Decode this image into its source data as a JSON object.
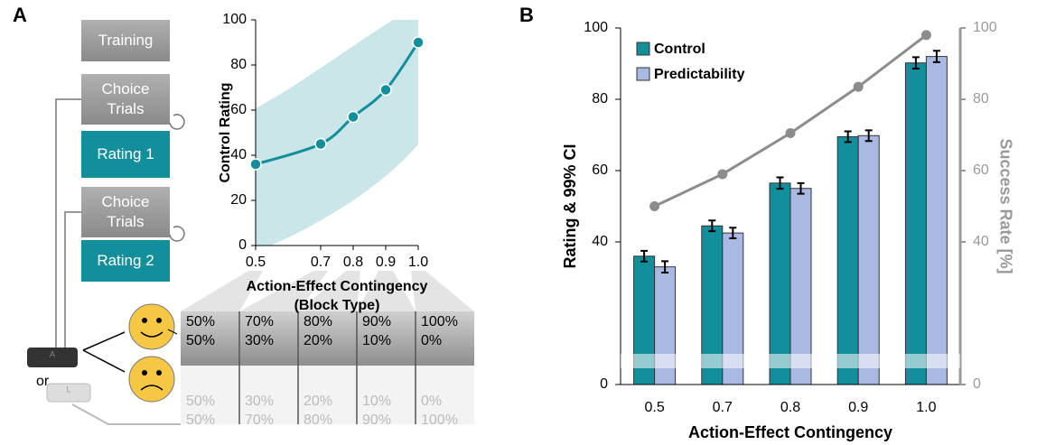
{
  "panels": [
    "A",
    "B"
  ],
  "flow": [
    "Training",
    "Choice Trials",
    "Rating 1",
    "Choice Trials",
    "Rating 2"
  ],
  "keys": [
    "A",
    "L"
  ],
  "or": "or",
  "table": {
    "rows": [
      [
        "50%",
        "70%",
        "80%",
        "90%",
        "100%"
      ],
      [
        "50%",
        "30%",
        "20%",
        "10%",
        "0%"
      ],
      [
        "50%",
        "30%",
        "20%",
        "10%",
        "0%"
      ],
      [
        "50%",
        "70%",
        "80%",
        "90%",
        "100%"
      ]
    ]
  },
  "chart_data": [
    {
      "type": "line",
      "ylabel": "Control Rating",
      "xlabel": "Action-Effect Contingency",
      "xlabel_sub": "(Block Type)",
      "x": [
        0.5,
        0.7,
        0.8,
        0.9,
        1.0
      ],
      "values": [
        36,
        45,
        57,
        69,
        90
      ],
      "color": "#138f9c",
      "xlim": [
        0.5,
        1
      ],
      "xticks": [
        0.5,
        0.7,
        0.8,
        0.9,
        {
          "value": 1,
          "label": "1.0"
        }
      ],
      "ylim": [
        0,
        100
      ],
      "yticks": [
        0,
        20,
        40,
        60,
        80,
        100
      ]
    },
    {
      "type": "bar",
      "xlabel": "Action-Effect Contingency",
      "ylabel": "Rating & 99% CI",
      "y2label": "Success Rate [%]",
      "categories": [
        "0.5",
        "0.7",
        "0.8",
        "0.9",
        "1.0"
      ],
      "series": [
        {
          "name": "Control",
          "color": "#138f9c",
          "values": [
            36,
            44.5,
            56.5,
            69.5,
            90.2
          ],
          "errors": [
            1.5,
            1.5,
            1.6,
            1.5,
            1.6
          ]
        },
        {
          "name": "Predictability",
          "color": "#a9b9e3",
          "values": [
            33,
            42.5,
            55,
            69.8,
            92
          ],
          "errors": [
            1.6,
            1.5,
            1.5,
            1.5,
            1.6
          ]
        },
        {
          "type": "line",
          "axis": "y2",
          "color": "#8c8c8c",
          "values": [
            50,
            59,
            70.5,
            83.5,
            98
          ]
        }
      ],
      "ylim": [
        0,
        100
      ],
      "yticks": [
        0,
        40,
        60,
        80,
        100
      ],
      "y2lim": [
        0,
        100
      ],
      "y2ticks": [
        0,
        40,
        60,
        80,
        100
      ],
      "legend": "top-left"
    }
  ]
}
